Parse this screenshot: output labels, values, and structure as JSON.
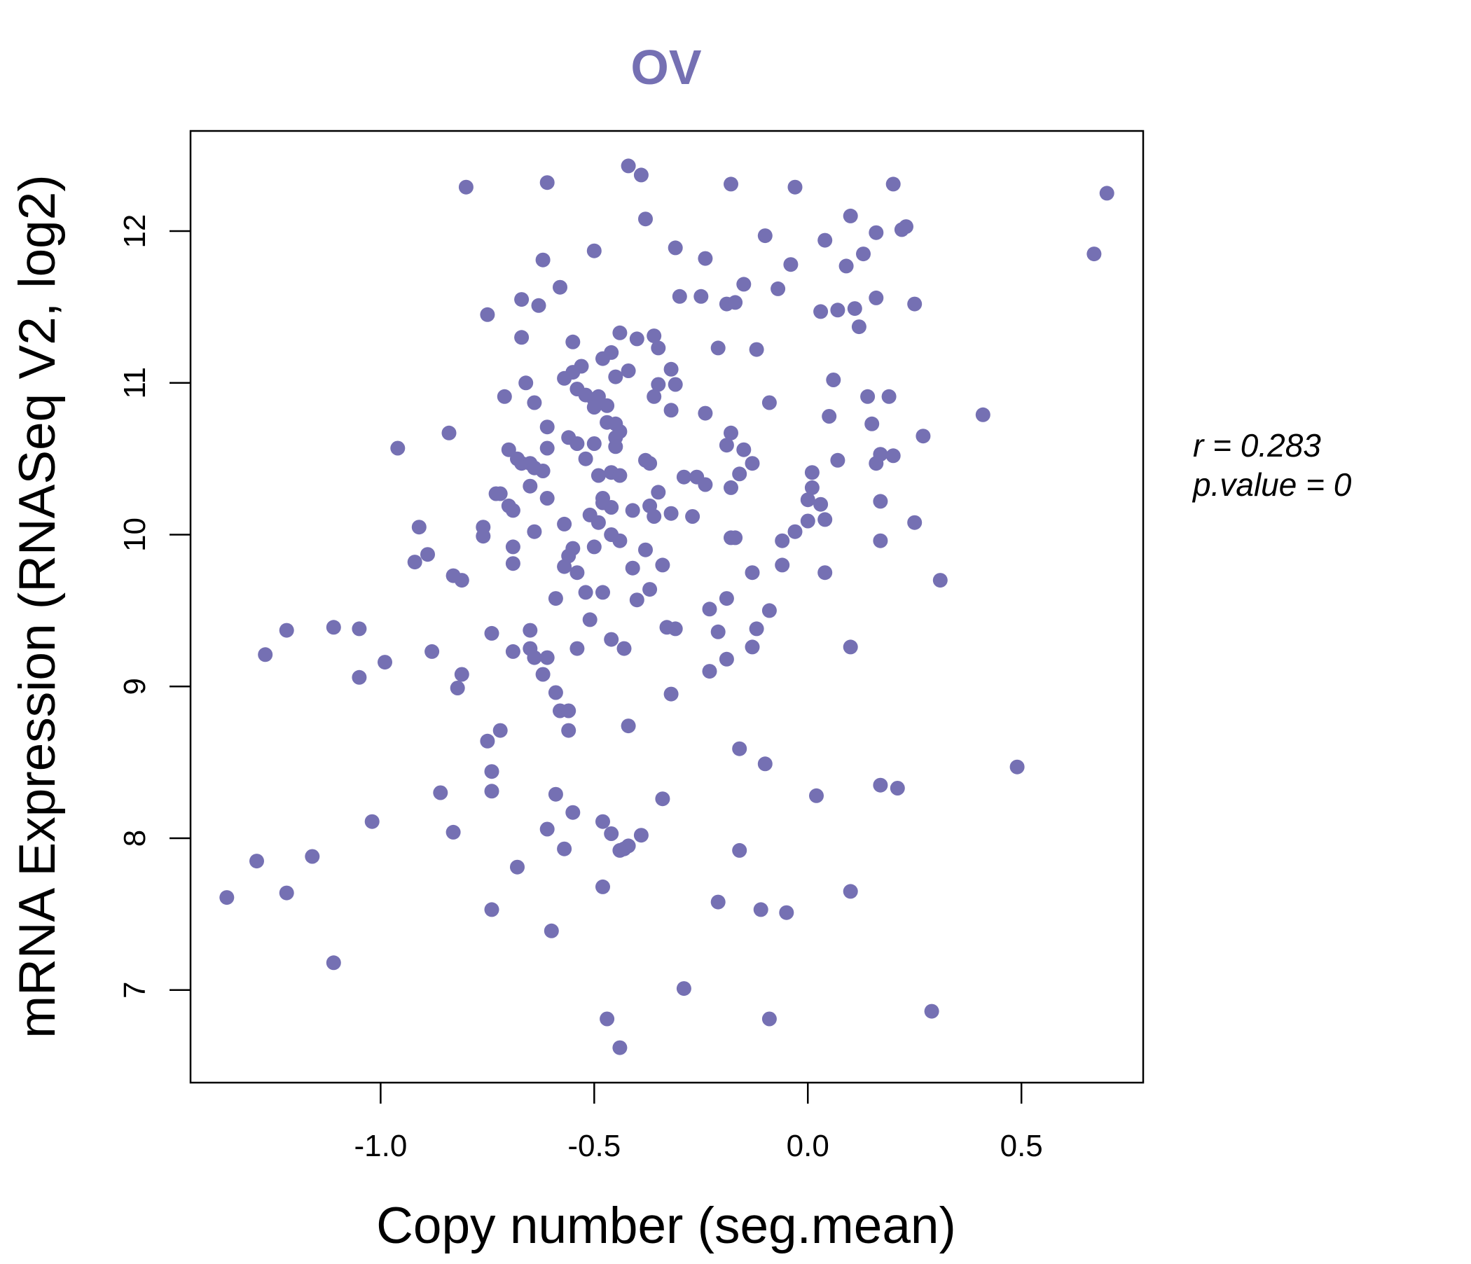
{
  "chart_data": {
    "type": "scatter",
    "title": "OV",
    "xlabel": "Copy number (seg.mean)",
    "ylabel": "mRNA Expression (RNASeq V2, log2)",
    "xlim": [
      -1.445,
      0.785
    ],
    "ylim": [
      6.39,
      12.66
    ],
    "xticks": [
      -1.0,
      -0.5,
      0.0,
      0.5
    ],
    "xtick_labels": [
      "-1.0",
      "-0.5",
      "0.0",
      "0.5"
    ],
    "yticks": [
      7,
      8,
      9,
      10,
      11,
      12
    ],
    "ytick_labels": [
      "7",
      "8",
      "9",
      "10",
      "11",
      "12"
    ],
    "grid": false,
    "legend": "none",
    "annotations": {
      "r_label": "r = 0.283",
      "p_label": "p.value = 0"
    },
    "colors": {
      "points": "#7570b3",
      "title": "#7570b3",
      "axes": "#000000"
    },
    "series": [
      {
        "points": [
          [
            -0.8,
            12.29
          ],
          [
            -0.61,
            12.32
          ],
          [
            -0.42,
            12.43
          ],
          [
            -0.39,
            12.37
          ],
          [
            -0.38,
            12.08
          ],
          [
            -0.18,
            12.31
          ],
          [
            -0.03,
            12.29
          ],
          [
            0.2,
            12.31
          ],
          [
            0.7,
            12.25
          ],
          [
            0.67,
            11.85
          ],
          [
            -0.5,
            11.87
          ],
          [
            -0.62,
            11.81
          ],
          [
            -0.31,
            11.89
          ],
          [
            -0.1,
            11.97
          ],
          [
            0.04,
            11.94
          ],
          [
            0.1,
            12.1
          ],
          [
            0.16,
            11.99
          ],
          [
            0.22,
            12.01
          ],
          [
            0.23,
            12.03
          ],
          [
            -0.24,
            11.82
          ],
          [
            -0.04,
            11.78
          ],
          [
            0.09,
            11.77
          ],
          [
            0.13,
            11.85
          ],
          [
            -0.58,
            11.63
          ],
          [
            -0.67,
            11.55
          ],
          [
            -0.63,
            11.51
          ],
          [
            -0.75,
            11.45
          ],
          [
            -0.3,
            11.57
          ],
          [
            -0.25,
            11.57
          ],
          [
            -0.19,
            11.52
          ],
          [
            -0.17,
            11.53
          ],
          [
            -0.15,
            11.65
          ],
          [
            -0.07,
            11.62
          ],
          [
            0.03,
            11.47
          ],
          [
            0.07,
            11.48
          ],
          [
            0.11,
            11.49
          ],
          [
            0.16,
            11.56
          ],
          [
            0.25,
            11.52
          ],
          [
            0.12,
            11.37
          ],
          [
            -0.67,
            11.3
          ],
          [
            -0.55,
            11.27
          ],
          [
            -0.44,
            11.33
          ],
          [
            -0.36,
            11.31
          ],
          [
            -0.4,
            11.29
          ],
          [
            -0.35,
            11.23
          ],
          [
            -0.21,
            11.23
          ],
          [
            -0.12,
            11.22
          ],
          [
            -0.48,
            11.16
          ],
          [
            -0.46,
            11.2
          ],
          [
            -0.53,
            11.11
          ],
          [
            -0.55,
            11.07
          ],
          [
            -0.57,
            11.03
          ],
          [
            -0.45,
            11.04
          ],
          [
            -0.42,
            11.08
          ],
          [
            -0.32,
            11.09
          ],
          [
            -0.31,
            10.99
          ],
          [
            -0.35,
            10.99
          ],
          [
            -0.36,
            10.91
          ],
          [
            -0.66,
            11.0
          ],
          [
            -0.71,
            10.91
          ],
          [
            -0.64,
            10.87
          ],
          [
            -0.54,
            10.96
          ],
          [
            -0.52,
            10.92
          ],
          [
            -0.5,
            10.89
          ],
          [
            -0.49,
            10.91
          ],
          [
            -0.5,
            10.84
          ],
          [
            -0.47,
            10.85
          ],
          [
            -0.32,
            10.82
          ],
          [
            -0.24,
            10.8
          ],
          [
            -0.09,
            10.87
          ],
          [
            0.06,
            11.02
          ],
          [
            0.14,
            10.91
          ],
          [
            0.19,
            10.91
          ],
          [
            0.05,
            10.78
          ],
          [
            0.15,
            10.73
          ],
          [
            0.41,
            10.79
          ],
          [
            -0.61,
            10.71
          ],
          [
            -0.47,
            10.74
          ],
          [
            -0.45,
            10.73
          ],
          [
            -0.44,
            10.68
          ],
          [
            -0.45,
            10.64
          ],
          [
            -0.56,
            10.64
          ],
          [
            -0.54,
            10.6
          ],
          [
            -0.5,
            10.6
          ],
          [
            -0.45,
            10.58
          ],
          [
            -0.18,
            10.67
          ],
          [
            -0.19,
            10.59
          ],
          [
            -0.15,
            10.56
          ],
          [
            0.27,
            10.65
          ],
          [
            -0.84,
            10.67
          ],
          [
            -0.96,
            10.57
          ],
          [
            -0.7,
            10.56
          ],
          [
            -0.61,
            10.57
          ],
          [
            -0.68,
            10.5
          ],
          [
            -0.67,
            10.47
          ],
          [
            -0.65,
            10.47
          ],
          [
            -0.64,
            10.44
          ],
          [
            -0.62,
            10.42
          ],
          [
            -0.52,
            10.5
          ],
          [
            -0.38,
            10.49
          ],
          [
            -0.37,
            10.47
          ],
          [
            -0.13,
            10.47
          ],
          [
            -0.16,
            10.4
          ],
          [
            0.07,
            10.49
          ],
          [
            0.16,
            10.47
          ],
          [
            0.17,
            10.53
          ],
          [
            0.2,
            10.52
          ],
          [
            -0.49,
            10.39
          ],
          [
            -0.46,
            10.41
          ],
          [
            -0.44,
            10.39
          ],
          [
            -0.29,
            10.38
          ],
          [
            -0.26,
            10.38
          ],
          [
            -0.24,
            10.33
          ],
          [
            -0.18,
            10.31
          ],
          [
            0.01,
            10.41
          ],
          [
            -0.65,
            10.32
          ],
          [
            -0.72,
            10.27
          ],
          [
            -0.73,
            10.27
          ],
          [
            -0.61,
            10.24
          ],
          [
            -0.48,
            10.24
          ],
          [
            -0.48,
            10.21
          ],
          [
            -0.46,
            10.18
          ],
          [
            -0.41,
            10.16
          ],
          [
            -0.37,
            10.19
          ],
          [
            -0.35,
            10.28
          ],
          [
            -0.36,
            10.12
          ],
          [
            -0.32,
            10.14
          ],
          [
            -0.27,
            10.12
          ],
          [
            0.0,
            10.23
          ],
          [
            0.01,
            10.31
          ],
          [
            0.03,
            10.2
          ],
          [
            0.04,
            10.1
          ],
          [
            0.0,
            10.09
          ],
          [
            0.17,
            10.22
          ],
          [
            0.25,
            10.08
          ],
          [
            -0.7,
            10.19
          ],
          [
            -0.69,
            10.16
          ],
          [
            -0.51,
            10.13
          ],
          [
            -0.49,
            10.08
          ],
          [
            -0.57,
            10.07
          ],
          [
            -0.76,
            10.05
          ],
          [
            -0.76,
            9.99
          ],
          [
            -0.64,
            10.02
          ],
          [
            -0.46,
            10.0
          ],
          [
            -0.44,
            9.96
          ],
          [
            -0.03,
            10.02
          ],
          [
            -0.06,
            9.96
          ],
          [
            -0.18,
            9.98
          ],
          [
            -0.17,
            9.98
          ],
          [
            0.17,
            9.96
          ],
          [
            -0.91,
            10.05
          ],
          [
            -0.89,
            9.87
          ],
          [
            -0.92,
            9.82
          ],
          [
            -0.69,
            9.92
          ],
          [
            -0.69,
            9.81
          ],
          [
            -0.55,
            9.91
          ],
          [
            -0.56,
            9.86
          ],
          [
            -0.5,
            9.92
          ],
          [
            -0.38,
            9.9
          ],
          [
            -0.57,
            9.79
          ],
          [
            -0.54,
            9.75
          ],
          [
            -0.41,
            9.78
          ],
          [
            -0.34,
            9.8
          ],
          [
            -0.13,
            9.75
          ],
          [
            -0.06,
            9.8
          ],
          [
            0.04,
            9.75
          ],
          [
            0.31,
            9.7
          ],
          [
            -0.83,
            9.73
          ],
          [
            -0.81,
            9.7
          ],
          [
            -0.59,
            9.58
          ],
          [
            -0.52,
            9.62
          ],
          [
            -0.48,
            9.62
          ],
          [
            -0.4,
            9.57
          ],
          [
            -0.37,
            9.64
          ],
          [
            -0.19,
            9.58
          ],
          [
            -0.23,
            9.51
          ],
          [
            -0.09,
            9.5
          ],
          [
            -0.51,
            9.44
          ],
          [
            -1.22,
            9.37
          ],
          [
            -1.11,
            9.39
          ],
          [
            -1.05,
            9.38
          ],
          [
            -0.74,
            9.35
          ],
          [
            -0.65,
            9.37
          ],
          [
            -0.33,
            9.39
          ],
          [
            -0.31,
            9.38
          ],
          [
            -0.21,
            9.36
          ],
          [
            -0.12,
            9.38
          ],
          [
            -1.27,
            9.21
          ],
          [
            -0.99,
            9.16
          ],
          [
            -0.88,
            9.23
          ],
          [
            -0.69,
            9.23
          ],
          [
            -0.65,
            9.25
          ],
          [
            -0.64,
            9.19
          ],
          [
            -0.61,
            9.19
          ],
          [
            -0.54,
            9.25
          ],
          [
            -0.46,
            9.31
          ],
          [
            -0.43,
            9.25
          ],
          [
            -0.13,
            9.26
          ],
          [
            -0.19,
            9.18
          ],
          [
            0.1,
            9.26
          ],
          [
            -1.05,
            9.06
          ],
          [
            -0.81,
            9.08
          ],
          [
            -0.82,
            8.99
          ],
          [
            -0.62,
            9.08
          ],
          [
            -0.23,
            9.1
          ],
          [
            -0.32,
            8.95
          ],
          [
            -0.59,
            8.96
          ],
          [
            -0.58,
            8.84
          ],
          [
            -0.56,
            8.84
          ],
          [
            -0.56,
            8.71
          ],
          [
            -0.72,
            8.71
          ],
          [
            -0.42,
            8.74
          ],
          [
            -0.75,
            8.64
          ],
          [
            -0.74,
            8.44
          ],
          [
            -0.74,
            8.31
          ],
          [
            -0.86,
            8.3
          ],
          [
            -0.16,
            8.59
          ],
          [
            -0.1,
            8.49
          ],
          [
            0.49,
            8.47
          ],
          [
            -0.59,
            8.29
          ],
          [
            0.17,
            8.35
          ],
          [
            0.21,
            8.33
          ],
          [
            0.02,
            8.28
          ],
          [
            -0.34,
            8.26
          ],
          [
            -1.02,
            8.11
          ],
          [
            -0.55,
            8.17
          ],
          [
            -0.48,
            8.11
          ],
          [
            -0.46,
            8.03
          ],
          [
            -0.39,
            8.02
          ],
          [
            -0.83,
            8.04
          ],
          [
            -0.61,
            8.06
          ],
          [
            -0.42,
            7.95
          ],
          [
            -0.43,
            7.93
          ],
          [
            -0.44,
            7.92
          ],
          [
            -0.57,
            7.93
          ],
          [
            -0.16,
            7.92
          ],
          [
            -1.29,
            7.85
          ],
          [
            -1.16,
            7.88
          ],
          [
            -0.68,
            7.81
          ],
          [
            -1.22,
            7.64
          ],
          [
            -1.36,
            7.61
          ],
          [
            -0.74,
            7.53
          ],
          [
            -0.48,
            7.68
          ],
          [
            -0.21,
            7.58
          ],
          [
            -0.11,
            7.53
          ],
          [
            -0.05,
            7.51
          ],
          [
            0.1,
            7.65
          ],
          [
            -0.6,
            7.39
          ],
          [
            -1.11,
            7.18
          ],
          [
            -0.29,
            7.01
          ],
          [
            0.29,
            6.86
          ],
          [
            -0.47,
            6.81
          ],
          [
            -0.09,
            6.81
          ],
          [
            -0.44,
            6.62
          ]
        ]
      }
    ]
  }
}
